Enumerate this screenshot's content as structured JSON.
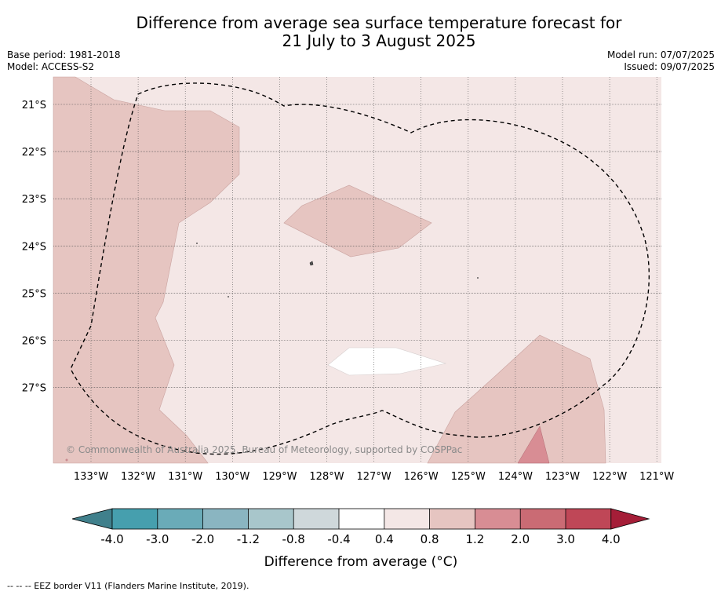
{
  "title": {
    "line1": "Difference from average sea surface temperature forecast for",
    "line2": "21 July to 3 August 2025"
  },
  "meta": {
    "base_period": "Base period: 1981-2018",
    "model": "Model: ACCESS-S2",
    "model_run": "Model run: 07/07/2025",
    "issued": "Issued: 09/07/2025"
  },
  "map": {
    "lon_labels": [
      "133°W",
      "132°W",
      "131°W",
      "130°W",
      "129°W",
      "128°W",
      "127°W",
      "126°W",
      "125°W",
      "124°W",
      "123°W",
      "122°W",
      "121°W"
    ],
    "lat_labels": [
      "21°S",
      "22°S",
      "23°S",
      "24°S",
      "25°S",
      "26°S",
      "27°S"
    ],
    "copyright": "© Commonwealth of Australia 2025, Bureau of Meteorology, supported by COSPPac"
  },
  "colorbar": {
    "title": "Difference from average (°C)",
    "ticks": [
      "-4.0",
      "-3.0",
      "-2.0",
      "-1.2",
      "-0.8",
      "-0.4",
      "0.4",
      "0.8",
      "1.2",
      "2.0",
      "3.0",
      "4.0"
    ],
    "colors": [
      "#40808c",
      "#469fae",
      "#6aabb8",
      "#8ab5c1",
      "#a8c6cb",
      "#cfd8db",
      "#ffffff",
      "#f4e7e6",
      "#e6c5c1",
      "#d88d94",
      "#ca6b74",
      "#bf4757",
      "#a51e38"
    ]
  },
  "footnote": "--  --  -- EEZ border V11 (Flanders Marine Institute, 2019)."
}
